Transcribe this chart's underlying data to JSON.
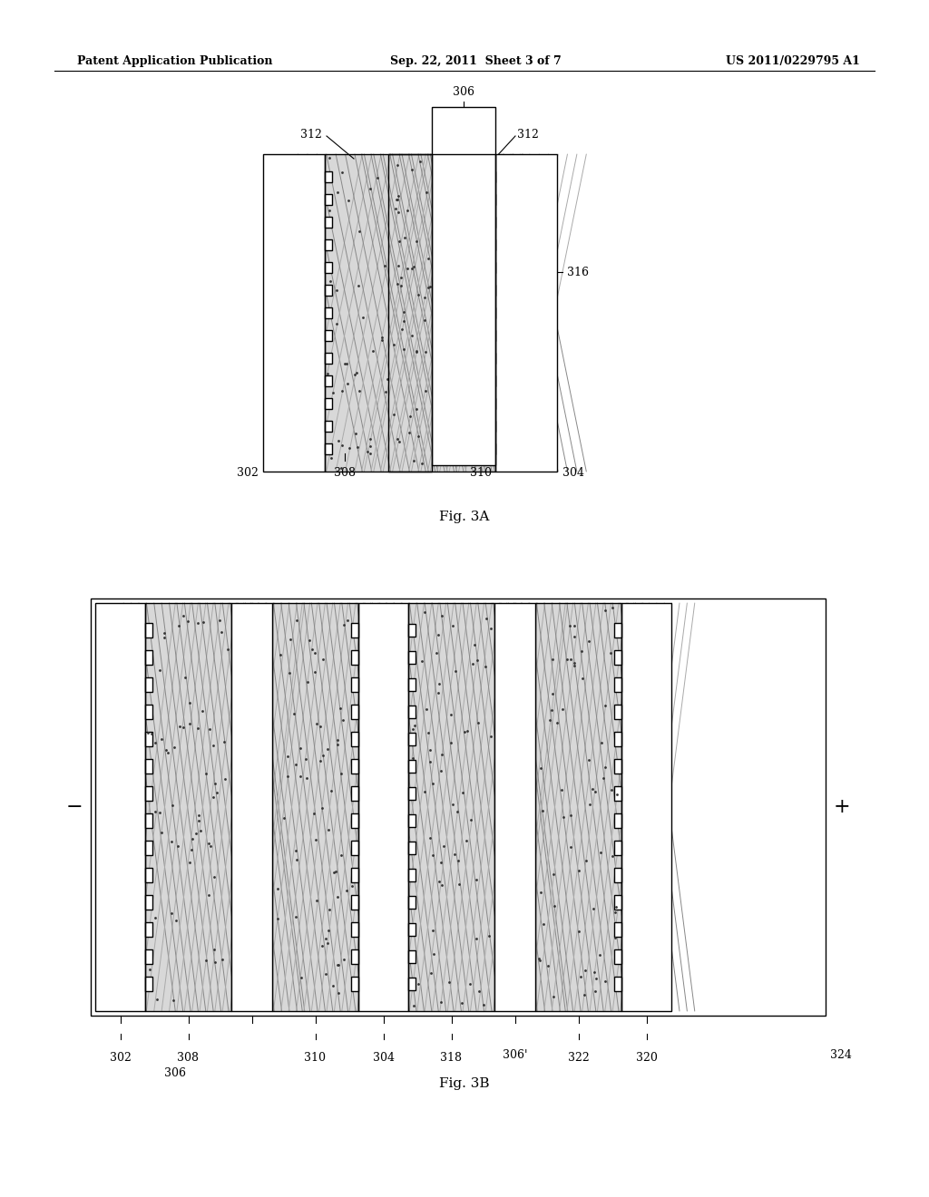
{
  "header_left": "Patent Application Publication",
  "header_mid": "Sep. 22, 2011  Sheet 3 of 7",
  "header_right": "US 2011/0229795 A1",
  "fig3a_label": "Fig. 3A",
  "fig3b_label": "Fig. 3B",
  "background": "#ffffff",
  "line_color": "#000000",
  "nanowire_color_light": "#cccccc",
  "nanowire_color_dark": "#555555",
  "electrode_fill": "#e8e8e8",
  "membrane_fill": "#ffffff"
}
